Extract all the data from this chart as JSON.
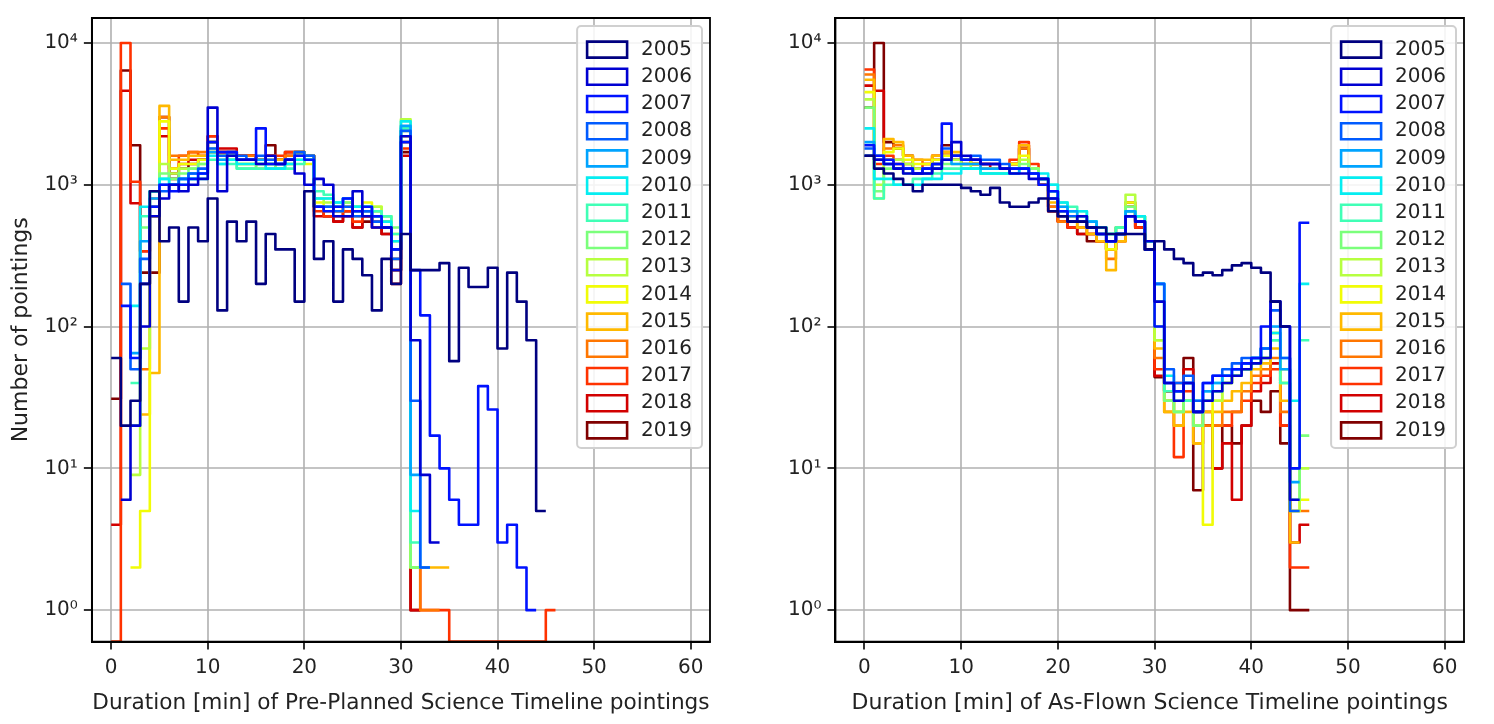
{
  "chart_data": [
    {
      "type": "histogram",
      "xlabel": "Duration [min] of Pre-Planned Science Timeline pointings",
      "ylabel": "Number of pointings",
      "bins": [
        0,
        1,
        2,
        3,
        4,
        5,
        6,
        7,
        8,
        9,
        10,
        11,
        12,
        13,
        14,
        15,
        16,
        17,
        18,
        19,
        20,
        21,
        22,
        23,
        24,
        25,
        26,
        27,
        28,
        29,
        30,
        31,
        32,
        33,
        34,
        35,
        36,
        37,
        38,
        39,
        40,
        41,
        42,
        43,
        44,
        45,
        46
      ],
      "series": [
        {
          "name": "2005",
          "color": "#000080",
          "bins": [
            0,
            1,
            2,
            3,
            4,
            5,
            6,
            7,
            8,
            9,
            10,
            11,
            12,
            13,
            14,
            15,
            16,
            17,
            18,
            19,
            20,
            21,
            22,
            23,
            24,
            25,
            26,
            27,
            28,
            29,
            30,
            31,
            32,
            33,
            34,
            35,
            36,
            37,
            38,
            39,
            40,
            41,
            42,
            43,
            44,
            45
          ],
          "values": [
            60,
            20,
            30,
            200,
            900,
            400,
            500,
            150,
            500,
            400,
            800,
            130,
            550,
            400,
            550,
            200,
            450,
            350,
            350,
            150,
            900,
            300,
            400,
            150,
            350,
            300,
            230,
            130,
            300,
            200,
            450,
            250,
            250,
            250,
            280,
            57,
            260,
            190,
            190,
            260,
            70,
            240,
            150,
            80,
            5
          ]
        },
        {
          "name": "2006",
          "color": "#0000d2",
          "bins": [
            1,
            2,
            3,
            4,
            5,
            6,
            7,
            8,
            9,
            10,
            11,
            12,
            13,
            14,
            15,
            16,
            17,
            18,
            19,
            20,
            21,
            22,
            23,
            24,
            25,
            26,
            27,
            28,
            29,
            30,
            31,
            32,
            33,
            34
          ],
          "values": [
            6,
            20,
            100,
            600,
            800,
            1000,
            900,
            1000,
            1100,
            3500,
            900,
            1600,
            1500,
            1500,
            1400,
            1600,
            1400,
            1500,
            1200,
            1000,
            1100,
            1000,
            600,
            600,
            900,
            600,
            500,
            500,
            250,
            2200,
            80,
            9,
            3
          ]
        },
        {
          "name": "2007",
          "color": "#0012ff",
          "bins": [
            1,
            2,
            3,
            4,
            5,
            6,
            7,
            8,
            9,
            10,
            11,
            12,
            13,
            14,
            15,
            16,
            17,
            18,
            19,
            20,
            21,
            22,
            23,
            24,
            25,
            26,
            27,
            28,
            29,
            30,
            31,
            32,
            33,
            34,
            35,
            36,
            37,
            38,
            39,
            40,
            41,
            42,
            43,
            44
          ],
          "values": [
            140,
            60,
            200,
            700,
            1000,
            900,
            1000,
            1100,
            1200,
            2000,
            1700,
            1700,
            1500,
            1500,
            2500,
            1400,
            1400,
            1500,
            1600,
            1500,
            700,
            650,
            700,
            800,
            650,
            700,
            600,
            500,
            350,
            2000,
            250,
            120,
            17,
            10,
            6,
            4,
            4,
            38,
            26,
            3,
            4,
            2,
            1
          ]
        },
        {
          "name": "2008",
          "color": "#005bff",
          "bins": [
            1,
            2,
            3,
            4,
            5,
            6,
            7,
            8,
            9,
            10,
            11,
            12,
            13,
            14,
            15,
            16,
            17,
            18,
            19,
            20,
            21,
            22,
            23,
            24,
            25,
            26,
            27,
            28,
            29,
            30,
            31,
            32,
            33
          ],
          "values": [
            200,
            50,
            300,
            700,
            900,
            1000,
            1100,
            1200,
            1300,
            1800,
            1600,
            1700,
            1600,
            1500,
            1600,
            1500,
            1400,
            1500,
            1700,
            1600,
            700,
            700,
            650,
            700,
            600,
            650,
            550,
            500,
            300,
            2400,
            30,
            2
          ]
        },
        {
          "name": "2009",
          "color": "#00a4ff",
          "bins": [
            2,
            3,
            4,
            5,
            6,
            7,
            8,
            9,
            10,
            11,
            12,
            13,
            14,
            15,
            16,
            17,
            18,
            19,
            20,
            21,
            22,
            23,
            24,
            25,
            26,
            27,
            28,
            29,
            30,
            31,
            32,
            33
          ],
          "values": [
            65,
            400,
            800,
            1000,
            1000,
            1100,
            1200,
            1200,
            1700,
            1500,
            1600,
            1500,
            1500,
            1500,
            1400,
            1400,
            1500,
            1600,
            1600,
            700,
            700,
            700,
            800,
            650,
            650,
            600,
            500,
            350,
            2600,
            9,
            2
          ]
        },
        {
          "name": "2010",
          "color": "#05edf1",
          "bins": [
            2,
            3,
            4,
            5,
            6,
            7,
            8,
            9,
            10,
            11,
            12,
            13,
            14,
            15,
            16,
            17,
            18,
            19,
            20,
            21,
            22,
            23,
            24,
            25,
            26,
            27,
            28,
            29,
            30,
            31,
            32
          ],
          "values": [
            140,
            700,
            900,
            1100,
            1000,
            1100,
            1100,
            1200,
            1600,
            1400,
            1500,
            1400,
            1400,
            1400,
            1300,
            1300,
            1400,
            1500,
            1500,
            800,
            800,
            750,
            800,
            700,
            700,
            600,
            550,
            400,
            2800,
            5
          ]
        },
        {
          "name": "2011",
          "color": "#40ffb6",
          "bins": [
            2,
            3,
            4,
            5,
            6,
            7,
            8,
            9,
            10,
            11,
            12,
            13,
            14,
            15,
            16,
            17,
            18,
            19,
            20,
            21,
            22,
            23,
            24,
            25,
            26,
            27,
            28,
            29,
            30,
            31,
            32
          ],
          "values": [
            40,
            600,
            900,
            1100,
            1000,
            1000,
            1100,
            1100,
            1500,
            1400,
            1400,
            1300,
            1300,
            1300,
            1300,
            1300,
            1300,
            1400,
            1500,
            900,
            850,
            750,
            800,
            700,
            700,
            650,
            600,
            450,
            2500,
            3
          ]
        },
        {
          "name": "2012",
          "color": "#7bff7b",
          "bins": [
            2,
            3,
            4,
            5,
            6,
            7,
            8,
            9,
            10,
            11,
            12,
            13,
            14,
            15,
            16,
            17,
            18,
            19,
            20,
            21,
            22,
            23,
            24,
            25,
            26,
            27,
            28,
            29,
            30,
            31,
            32
          ],
          "values": [
            20,
            500,
            900,
            1200,
            1100,
            1200,
            1300,
            1400,
            2000,
            1500,
            1500,
            1300,
            1300,
            1400,
            1400,
            1300,
            1400,
            1700,
            1500,
            800,
            800,
            700,
            750,
            700,
            700,
            650,
            600,
            500,
            2500,
            2
          ]
        },
        {
          "name": "2013",
          "color": "#b6ff40",
          "bins": [
            2,
            3,
            4,
            5,
            6,
            7,
            8,
            9,
            10,
            11,
            12,
            13,
            14,
            15,
            16,
            17,
            18,
            19,
            20,
            21,
            22,
            23,
            24,
            25,
            26,
            27,
            28,
            29,
            30,
            31,
            32
          ],
          "values": [
            9,
            70,
            700,
            1400,
            1200,
            1300,
            1300,
            1400,
            1800,
            1600,
            1600,
            1400,
            1400,
            1400,
            1400,
            1400,
            1500,
            1600,
            1500,
            800,
            750,
            700,
            700,
            650,
            700,
            700,
            600,
            400,
            2900,
            2
          ]
        },
        {
          "name": "2014",
          "color": "#f1fc06",
          "bins": [
            2,
            3,
            4,
            5,
            6,
            7,
            8,
            9,
            10,
            11,
            12,
            13,
            14,
            15,
            16,
            17,
            18,
            19,
            20,
            21,
            22,
            23,
            24,
            25,
            26,
            27,
            28,
            29,
            30,
            31,
            32
          ],
          "values": [
            2,
            5,
            600,
            2800,
            1300,
            1400,
            1400,
            1500,
            1700,
            1600,
            1500,
            1400,
            1400,
            1300,
            1400,
            1300,
            1400,
            1500,
            1400,
            750,
            700,
            700,
            750,
            700,
            750,
            700,
            550,
            450,
            2400,
            2
          ]
        },
        {
          "name": "2015",
          "color": "#ffb900",
          "bins": [
            3,
            4,
            5,
            6,
            7,
            8,
            9,
            10,
            11,
            12,
            13,
            14,
            15,
            16,
            17,
            18,
            19,
            20,
            21,
            22,
            23,
            24,
            25,
            26,
            27,
            28,
            29,
            30,
            31,
            32,
            33,
            34,
            35
          ],
          "values": [
            24,
            47,
            3600,
            1500,
            1500,
            1600,
            1600,
            1700,
            1600,
            1600,
            1500,
            1500,
            1500,
            1500,
            1500,
            1500,
            1600,
            1600,
            700,
            700,
            650,
            700,
            650,
            700,
            650,
            550,
            250,
            2200,
            2,
            2,
            2,
            2
          ]
        },
        {
          "name": "2016",
          "color": "#ff7600",
          "bins": [
            3,
            4,
            5,
            6,
            7,
            8,
            9,
            10,
            11,
            12,
            13,
            14,
            15,
            16,
            17,
            18,
            19,
            20,
            21,
            22,
            23,
            24,
            25,
            26,
            27,
            28,
            29,
            30,
            31,
            32,
            33,
            34
          ],
          "values": [
            50,
            800,
            3000,
            1600,
            1600,
            1700,
            1700,
            2000,
            1700,
            1700,
            1600,
            1600,
            1500,
            1600,
            1500,
            1600,
            1700,
            1600,
            700,
            650,
            650,
            700,
            600,
            650,
            600,
            500,
            300,
            2000,
            2,
            1,
            1
          ]
        },
        {
          "name": "2017",
          "color": "#ff3200",
          "values": [
            null,
            10000,
            1050,
            340,
            700,
            2500,
            1300,
            1600,
            1700,
            1600,
            2200,
            1700,
            1700,
            1600,
            1600,
            1500,
            1600,
            1600,
            1700,
            1700,
            1600,
            650,
            600,
            600,
            650,
            550,
            600,
            550,
            500,
            200,
            1800,
            2,
            1,
            1,
            1,
            null,
            null,
            null,
            null,
            null,
            null,
            null,
            null,
            null,
            null,
            1
          ]
        },
        {
          "name": "2018",
          "color": "#d20000",
          "bins": [
            0,
            1,
            2,
            3,
            4,
            5,
            6,
            7,
            8,
            9,
            10,
            11,
            12,
            13,
            14,
            15,
            16,
            17,
            18,
            19,
            20,
            21,
            22,
            23,
            24,
            25,
            26,
            27,
            28,
            29,
            30,
            31,
            32
          ],
          "values": [
            4,
            4600,
            740,
            340,
            600,
            2200,
            1200,
            1400,
            1500,
            1500,
            2200,
            1800,
            1800,
            1600,
            1600,
            1500,
            1600,
            1500,
            1600,
            1700,
            1600,
            600,
            600,
            550,
            600,
            500,
            600,
            500,
            450,
            250,
            1600,
            1
          ]
        },
        {
          "name": "2019",
          "color": "#800000",
          "bins": [
            0,
            1,
            2,
            3,
            4,
            5,
            6,
            7,
            8,
            9,
            10,
            11,
            12,
            13,
            14,
            15,
            16,
            17,
            18,
            19,
            20,
            21,
            22,
            23,
            24,
            25,
            26,
            27,
            28,
            29,
            30,
            31,
            32
          ],
          "values": [
            31,
            6400,
            1900,
            240,
            240,
            3000,
            1100,
            1300,
            1400,
            1500,
            2000,
            1700,
            1700,
            1600,
            1600,
            1500,
            1900,
            1500,
            1700,
            1700,
            1600,
            700,
            600,
            550,
            650,
            500,
            550,
            600,
            450,
            350,
            1700,
            1
          ]
        }
      ],
      "xlim": [
        -2,
        62
      ],
      "xticks": [
        0,
        10,
        20,
        30,
        40,
        50,
        60
      ],
      "ylim": [
        0.6,
        15000
      ],
      "yticks": [
        {
          "value": 1,
          "label": "10⁰"
        },
        {
          "value": 10,
          "label": "10¹"
        },
        {
          "value": 100,
          "label": "10²"
        },
        {
          "value": 1000,
          "label": "10³"
        },
        {
          "value": 10000,
          "label": "10⁴"
        }
      ],
      "log": true,
      "grid": true,
      "legend": "top right"
    },
    {
      "type": "histogram",
      "xlabel": "Duration [min] of As-Flown Science Timeline pointings",
      "bins": [
        0,
        1,
        2,
        3,
        4,
        5,
        6,
        7,
        8,
        9,
        10,
        11,
        12,
        13,
        14,
        15,
        16,
        17,
        18,
        19,
        20,
        21,
        22,
        23,
        24,
        25,
        26,
        27,
        28,
        29,
        30,
        31,
        32,
        33,
        34,
        35,
        36,
        37,
        38,
        39,
        40,
        41,
        42,
        43,
        44,
        45,
        46
      ],
      "series": [
        {
          "name": "2005",
          "color": "#000080",
          "bins": [
            0,
            1,
            2,
            3,
            4,
            5,
            6,
            7,
            8,
            9,
            10,
            11,
            12,
            13,
            14,
            15,
            16,
            17,
            18,
            19,
            20,
            21,
            22,
            23,
            24,
            25,
            26,
            27,
            28,
            29,
            30,
            31,
            32,
            33,
            34,
            35,
            36,
            37,
            38,
            39,
            40,
            41,
            42,
            43,
            44
          ],
          "values": [
            1600,
            1300,
            1200,
            1100,
            1000,
            900,
            1000,
            1000,
            1000,
            1000,
            950,
            900,
            850,
            950,
            750,
            700,
            700,
            750,
            800,
            650,
            600,
            550,
            550,
            500,
            500,
            450,
            450,
            450,
            450,
            350,
            400,
            350,
            300,
            280,
            230,
            240,
            230,
            250,
            270,
            280,
            260,
            240,
            150,
            100
          ]
        },
        {
          "name": "2006",
          "color": "#0000d2",
          "bins": [
            0,
            1,
            2,
            3,
            4,
            5,
            6,
            7,
            8,
            9,
            10,
            11,
            12,
            13,
            14,
            15,
            16,
            17,
            18,
            19,
            20,
            21,
            22,
            23,
            24,
            25,
            26,
            27,
            28,
            29,
            30,
            31,
            32,
            33,
            34,
            35,
            36,
            37,
            38,
            39,
            40,
            41,
            42,
            43,
            44,
            45
          ],
          "values": [
            1600,
            1500,
            1400,
            1300,
            1200,
            1200,
            1200,
            1300,
            1500,
            2000,
            1600,
            1500,
            1400,
            1400,
            1300,
            1200,
            1200,
            1100,
            1100,
            800,
            600,
            550,
            600,
            500,
            450,
            400,
            450,
            600,
            550,
            400,
            150,
            40,
            30,
            40,
            25,
            30,
            35,
            40,
            45,
            50,
            55,
            60,
            150,
            100,
            6
          ]
        },
        {
          "name": "2007",
          "color": "#0012ff",
          "values": [
            1900,
            1600,
            1500,
            1400,
            1300,
            1200,
            1300,
            1400,
            2700,
            1600,
            1500,
            1500,
            1400,
            1400,
            1300,
            1300,
            1300,
            1200,
            1000,
            900,
            650,
            550,
            550,
            500,
            450,
            400,
            450,
            600,
            550,
            350,
            100,
            40,
            35,
            40,
            25,
            40,
            45,
            45,
            50,
            55,
            60,
            100,
            150,
            100,
            10,
            540
          ]
        },
        {
          "name": "2008",
          "color": "#005bff",
          "bins": [
            0,
            1,
            2,
            3,
            4,
            5,
            6,
            7,
            8,
            9,
            10,
            11,
            12,
            13,
            14,
            15,
            16,
            17,
            18,
            19,
            20,
            21,
            22,
            23,
            24,
            25,
            26,
            27,
            28,
            29,
            30,
            31,
            32,
            33,
            34,
            35,
            36,
            37,
            38,
            39,
            40,
            41,
            42,
            43,
            44,
            45
          ],
          "values": [
            1800,
            1500,
            1400,
            1300,
            1300,
            1200,
            1300,
            1400,
            1800,
            1600,
            1500,
            1600,
            1500,
            1500,
            1400,
            1300,
            1300,
            1200,
            1100,
            800,
            650,
            600,
            550,
            500,
            450,
            400,
            450,
            600,
            550,
            350,
            200,
            50,
            40,
            45,
            30,
            40,
            45,
            50,
            55,
            60,
            60,
            70,
            130,
            60,
            5
          ]
        },
        {
          "name": "2009",
          "color": "#00a4ff",
          "bins": [
            0,
            1,
            2,
            3,
            4,
            5,
            6,
            7,
            8,
            9,
            10,
            11,
            12,
            13,
            14,
            15,
            16,
            17,
            18,
            19,
            20,
            21,
            22,
            23,
            24,
            25,
            26,
            27,
            28,
            29,
            30,
            31,
            32,
            33,
            34,
            35,
            36,
            37,
            38,
            39,
            40,
            41,
            42,
            43,
            44,
            45
          ],
          "values": [
            2000,
            1600,
            1400,
            1300,
            1300,
            1200,
            1200,
            1300,
            1500,
            1400,
            1400,
            1400,
            1300,
            1300,
            1300,
            1200,
            1300,
            1200,
            1100,
            900,
            700,
            650,
            600,
            550,
            450,
            400,
            450,
            650,
            550,
            350,
            200,
            40,
            35,
            40,
            25,
            35,
            40,
            45,
            50,
            55,
            60,
            70,
            100,
            50,
            8
          ]
        },
        {
          "name": "2010",
          "color": "#05edf1",
          "values": [
            2500,
            1100,
            1100,
            1000,
            1000,
            1000,
            1100,
            1100,
            1200,
            1200,
            1300,
            1300,
            1200,
            1200,
            1200,
            1200,
            1300,
            1200,
            1200,
            1000,
            750,
            650,
            650,
            550,
            500,
            450,
            450,
            650,
            600,
            400,
            200,
            45,
            35,
            40,
            30,
            35,
            40,
            45,
            50,
            55,
            60,
            70,
            90,
            60,
            30,
            200
          ]
        },
        {
          "name": "2011",
          "color": "#40ffb6",
          "values": [
            1600,
            800,
            1000,
            1000,
            1000,
            1100,
            1100,
            1200,
            1300,
            1300,
            1300,
            1300,
            1200,
            1200,
            1200,
            1300,
            1300,
            1200,
            1100,
            1000,
            750,
            700,
            650,
            550,
            500,
            450,
            500,
            650,
            600,
            400,
            150,
            35,
            30,
            30,
            25,
            30,
            35,
            45,
            45,
            50,
            55,
            60,
            80,
            40,
            10,
            80
          ]
        },
        {
          "name": "2012",
          "color": "#7bff7b",
          "values": [
            3500,
            900,
            1300,
            1300,
            1200,
            1200,
            1200,
            1300,
            1400,
            1400,
            1300,
            1300,
            1200,
            1200,
            1200,
            1300,
            1400,
            1300,
            1100,
            900,
            700,
            650,
            600,
            550,
            500,
            450,
            500,
            700,
            600,
            400,
            100,
            30,
            25,
            30,
            20,
            30,
            35,
            40,
            45,
            50,
            60,
            70,
            80,
            40,
            6,
            17
          ]
        },
        {
          "name": "2013",
          "color": "#b6ff40",
          "values": [
            4000,
            1000,
            1500,
            1500,
            1400,
            1300,
            1300,
            1400,
            1500,
            1500,
            1400,
            1300,
            1200,
            1200,
            1200,
            1300,
            1500,
            1300,
            1100,
            900,
            650,
            600,
            600,
            500,
            450,
            400,
            500,
            850,
            600,
            400,
            80,
            30,
            25,
            30,
            20,
            30,
            30,
            40,
            45,
            50,
            55,
            60,
            90,
            50,
            5,
            10
          ]
        },
        {
          "name": "2014",
          "color": "#f1fc06",
          "values": [
            4500,
            800,
            1700,
            1800,
            1500,
            1400,
            1400,
            1500,
            1600,
            1600,
            1500,
            1400,
            1300,
            1300,
            1300,
            1400,
            1600,
            1300,
            1100,
            800,
            650,
            600,
            550,
            500,
            450,
            350,
            450,
            750,
            600,
            400,
            80,
            30,
            25,
            30,
            20,
            4,
            30,
            40,
            45,
            50,
            55,
            60,
            90,
            40,
            5,
            6
          ]
        },
        {
          "name": "2015",
          "color": "#ffb900",
          "bins": [
            0,
            1,
            2,
            3,
            4,
            5,
            6,
            7,
            8,
            9,
            10,
            11,
            12,
            13,
            14,
            15,
            16,
            17,
            18,
            19,
            20,
            21,
            22,
            23,
            24,
            25,
            26,
            27,
            28,
            29,
            30,
            31,
            32,
            33,
            34,
            35,
            36,
            37,
            38,
            39,
            40,
            41,
            42,
            43,
            44,
            45
          ],
          "values": [
            5500,
            1600,
            2100,
            2000,
            1600,
            1500,
            1500,
            1600,
            1700,
            1700,
            1500,
            1400,
            1300,
            1300,
            1300,
            1400,
            1900,
            1300,
            1000,
            750,
            600,
            550,
            500,
            450,
            400,
            250,
            400,
            700,
            550,
            350,
            70,
            25,
            20,
            25,
            15,
            25,
            25,
            30,
            35,
            40,
            50,
            55,
            70,
            30,
            3
          ]
        },
        {
          "name": "2016",
          "color": "#ff7600",
          "values": [
            6000,
            1500,
            1800,
            1900,
            1600,
            1500,
            1400,
            1600,
            1700,
            1600,
            1500,
            1400,
            1300,
            1300,
            1300,
            1400,
            1800,
            1300,
            1000,
            700,
            550,
            550,
            500,
            450,
            400,
            300,
            400,
            650,
            550,
            350,
            60,
            25,
            20,
            30,
            15,
            20,
            20,
            25,
            25,
            35,
            45,
            50,
            60,
            25,
            5,
            5
          ]
        },
        {
          "name": "2017",
          "color": "#ff3200",
          "values": [
            6500,
            1400,
            1600,
            1500,
            1300,
            1300,
            1400,
            1600,
            1700,
            1600,
            1500,
            1500,
            1400,
            1400,
            1300,
            1500,
            2000,
            1400,
            1000,
            650,
            550,
            500,
            500,
            450,
            400,
            350,
            400,
            650,
            500,
            350,
            50,
            30,
            12,
            35,
            25,
            25,
            20,
            20,
            25,
            30,
            40,
            45,
            50,
            20,
            2,
            2
          ]
        },
        {
          "name": "2018",
          "color": "#d20000",
          "values": [
            5000,
            4600,
            1500,
            1400,
            1400,
            1200,
            1300,
            1500,
            1600,
            1600,
            1500,
            1400,
            1400,
            1300,
            1300,
            1400,
            1900,
            1300,
            1000,
            700,
            550,
            500,
            450,
            450,
            400,
            350,
            450,
            750,
            500,
            350,
            45,
            35,
            40,
            50,
            25,
            20,
            10,
            15,
            6,
            20,
            35,
            40,
            55,
            20,
            3,
            4
          ]
        },
        {
          "name": "2019",
          "color": "#800000",
          "values": [
            3500,
            10000,
            2000,
            1800,
            1600,
            1300,
            1200,
            1400,
            1900,
            1500,
            1400,
            1400,
            1300,
            1300,
            1300,
            1400,
            1800,
            1200,
            1000,
            650,
            550,
            500,
            450,
            400,
            400,
            350,
            500,
            700,
            500,
            350,
            44,
            35,
            35,
            60,
            7,
            20,
            10,
            20,
            15,
            20,
            30,
            25,
            35,
            15,
            1,
            1
          ]
        }
      ],
      "xlim": [
        -3,
        62
      ],
      "xticks": [
        0,
        10,
        20,
        30,
        40,
        50,
        60
      ],
      "ylim": [
        0.6,
        15000
      ],
      "yticks": [
        {
          "value": 1,
          "label": "10⁰"
        },
        {
          "value": 10,
          "label": "10¹"
        },
        {
          "value": 100,
          "label": "10²"
        },
        {
          "value": 1000,
          "label": "10³"
        },
        {
          "value": 10000,
          "label": "10⁴"
        }
      ],
      "log": true,
      "grid": true,
      "legend": "top right"
    }
  ]
}
